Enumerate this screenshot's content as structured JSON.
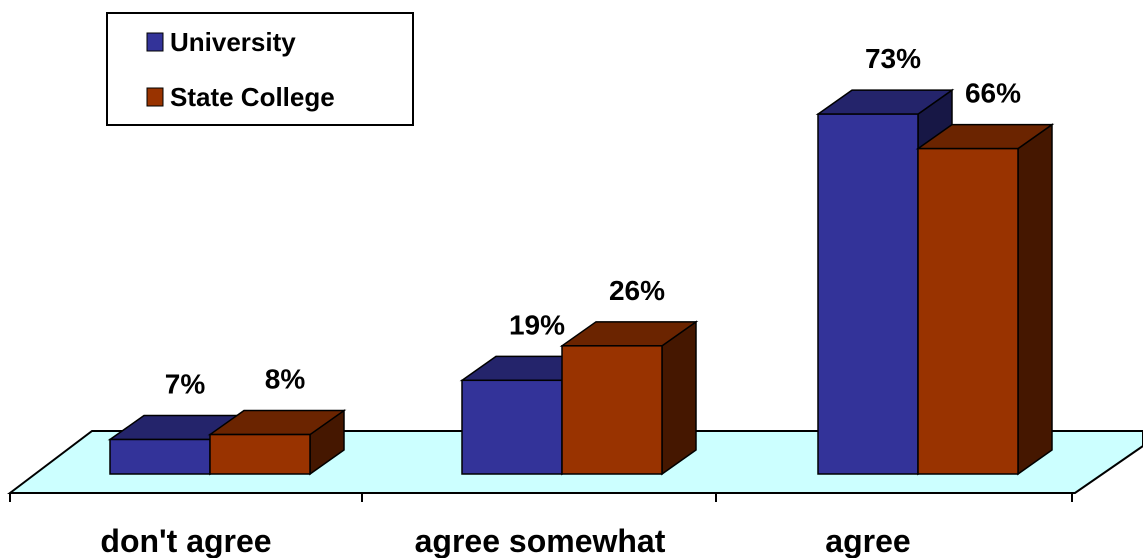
{
  "chart_data": {
    "type": "bar",
    "categories": [
      "don't agree",
      "agree somewhat",
      "agree"
    ],
    "series": [
      {
        "name": "University",
        "values": [
          7,
          19,
          73
        ],
        "labels": [
          "7%",
          "19%",
          "73%"
        ]
      },
      {
        "name": "State College",
        "values": [
          8,
          26,
          66
        ],
        "labels": [
          "8%",
          "26%",
          "66%"
        ]
      }
    ],
    "ylim": [
      0,
      80
    ],
    "grid": false,
    "legend": "top-left",
    "three_d": true
  },
  "colors": {
    "series": [
      "#333399",
      "#993300"
    ],
    "floor": "#ccffff"
  }
}
